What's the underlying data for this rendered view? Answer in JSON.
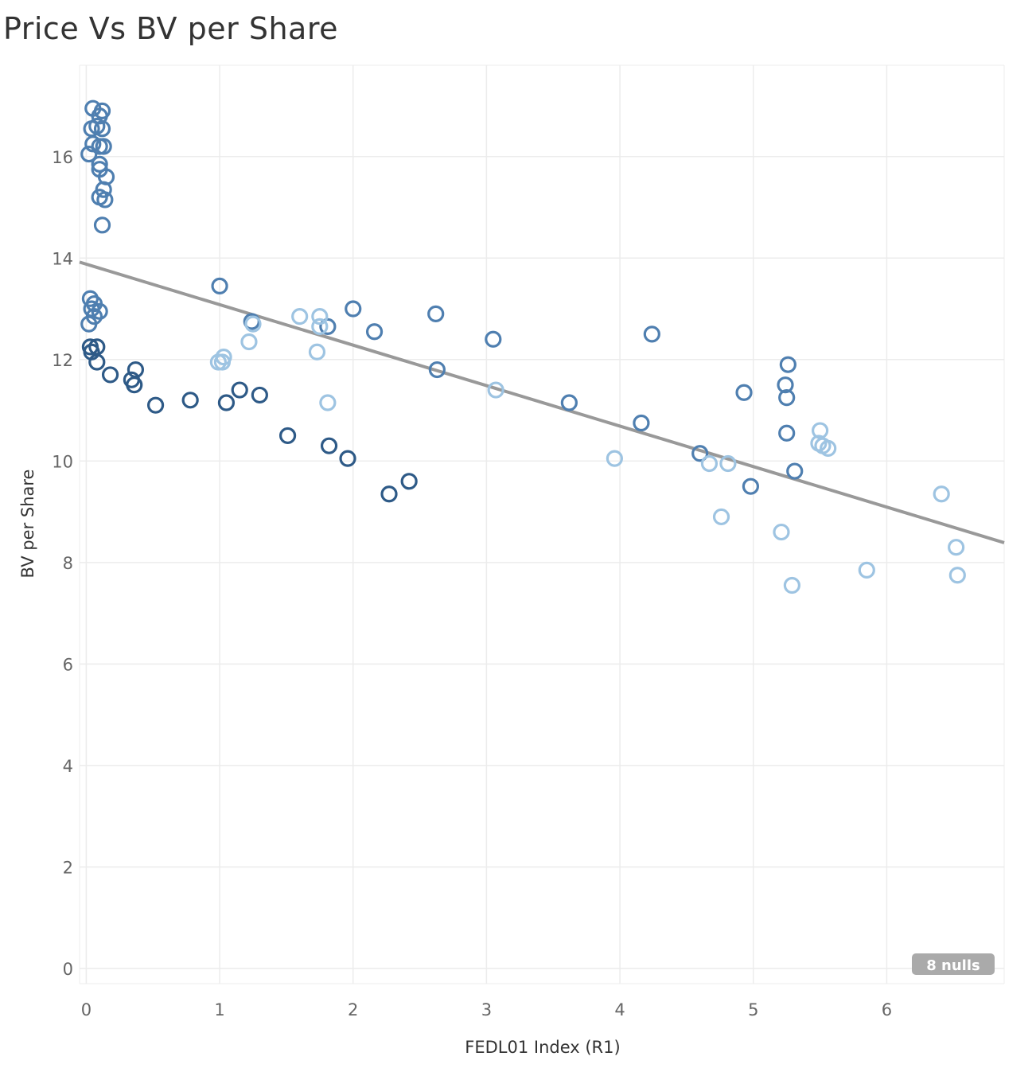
{
  "chart_data": {
    "type": "scatter",
    "title": "Price Vs BV per Share",
    "xlabel": "FEDL01 Index  (R1)",
    "ylabel": "BV per Share",
    "xlim": [
      -0.05,
      6.88
    ],
    "ylim": [
      -0.3,
      17.8
    ],
    "x_ticks": [
      0,
      1,
      2,
      3,
      4,
      5,
      6
    ],
    "y_ticks": [
      0,
      2,
      4,
      6,
      8,
      10,
      12,
      14,
      16
    ],
    "grid": true,
    "nulls_badge": "8 nulls",
    "colors": {
      "dark": "#2e5a87",
      "medium": "#4f7fb0",
      "light": "#9ec4e2",
      "trend": "#999999",
      "grid": "#ececec",
      "badge": "#aaaaaa"
    },
    "trend_line": {
      "x": [
        -0.05,
        6.88
      ],
      "y": [
        13.92,
        8.39
      ]
    },
    "series": [
      {
        "color_key": "medium",
        "points": [
          [
            0.05,
            16.95
          ],
          [
            0.12,
            16.9
          ],
          [
            0.1,
            16.8
          ],
          [
            0.08,
            16.6
          ],
          [
            0.04,
            16.55
          ],
          [
            0.12,
            16.55
          ],
          [
            0.05,
            16.25
          ],
          [
            0.1,
            16.2
          ],
          [
            0.13,
            16.2
          ],
          [
            0.02,
            16.05
          ],
          [
            0.1,
            15.85
          ],
          [
            0.1,
            15.75
          ],
          [
            0.15,
            15.6
          ],
          [
            0.13,
            15.35
          ],
          [
            0.1,
            15.2
          ],
          [
            0.14,
            15.15
          ],
          [
            0.12,
            14.65
          ],
          [
            0.03,
            13.2
          ],
          [
            0.06,
            13.1
          ],
          [
            0.04,
            13.0
          ],
          [
            0.1,
            12.95
          ],
          [
            0.06,
            12.85
          ],
          [
            0.02,
            12.7
          ],
          [
            1.0,
            13.45
          ],
          [
            2.0,
            13.0
          ],
          [
            2.62,
            12.9
          ],
          [
            1.81,
            12.65
          ],
          [
            2.16,
            12.55
          ],
          [
            4.24,
            12.5
          ],
          [
            3.05,
            12.4
          ],
          [
            1.24,
            12.75
          ],
          [
            2.63,
            11.8
          ],
          [
            3.62,
            11.15
          ],
          [
            4.93,
            11.35
          ],
          [
            5.26,
            11.9
          ],
          [
            5.24,
            11.5
          ],
          [
            5.25,
            11.25
          ],
          [
            4.16,
            10.75
          ],
          [
            5.25,
            10.55
          ],
          [
            4.6,
            10.15
          ],
          [
            5.31,
            9.8
          ],
          [
            4.98,
            9.5
          ]
        ]
      },
      {
        "color_key": "dark",
        "points": [
          [
            0.03,
            12.25
          ],
          [
            0.08,
            12.25
          ],
          [
            0.04,
            12.15
          ],
          [
            0.08,
            11.95
          ],
          [
            0.18,
            11.7
          ],
          [
            0.34,
            11.6
          ],
          [
            0.36,
            11.5
          ],
          [
            0.37,
            11.8
          ],
          [
            0.52,
            11.1
          ],
          [
            0.78,
            11.2
          ],
          [
            1.05,
            11.15
          ],
          [
            1.15,
            11.4
          ],
          [
            1.3,
            11.3
          ],
          [
            1.51,
            10.5
          ],
          [
            1.82,
            10.3
          ],
          [
            1.96,
            10.05
          ],
          [
            2.27,
            9.35
          ],
          [
            2.42,
            9.6
          ]
        ]
      },
      {
        "color_key": "light",
        "points": [
          [
            0.99,
            11.95
          ],
          [
            1.02,
            11.95
          ],
          [
            1.03,
            12.05
          ],
          [
            1.22,
            12.35
          ],
          [
            1.25,
            12.7
          ],
          [
            1.6,
            12.85
          ],
          [
            1.75,
            12.85
          ],
          [
            1.75,
            12.65
          ],
          [
            1.73,
            12.15
          ],
          [
            1.81,
            11.15
          ],
          [
            3.07,
            11.4
          ],
          [
            3.96,
            10.05
          ],
          [
            4.67,
            9.95
          ],
          [
            4.81,
            9.95
          ],
          [
            4.76,
            8.9
          ],
          [
            5.21,
            8.6
          ],
          [
            5.29,
            7.55
          ],
          [
            5.5,
            10.6
          ],
          [
            5.49,
            10.35
          ],
          [
            5.52,
            10.3
          ],
          [
            5.56,
            10.25
          ],
          [
            5.85,
            7.85
          ],
          [
            6.41,
            9.35
          ],
          [
            6.52,
            8.3
          ],
          [
            6.53,
            7.75
          ]
        ]
      }
    ]
  }
}
